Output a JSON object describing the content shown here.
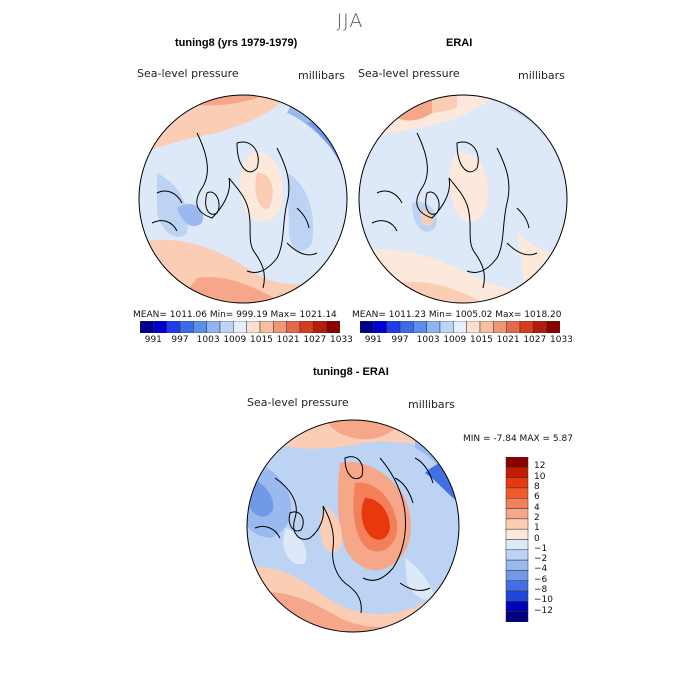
{
  "figure": {
    "season": "JJA"
  },
  "panels": {
    "model": {
      "title": "tuning8 (yrs 1979-1979)",
      "variable": "Sea-level pressure",
      "units": "millibars",
      "stats": "MEAN=  1011.06   Min=  999.19   Max=  1021.14"
    },
    "obs": {
      "title": "ERAI",
      "variable": "Sea-level pressure",
      "units": "millibars",
      "stats": "MEAN=  1011.23   Min=  1005.02   Max=  1018.20"
    },
    "diff": {
      "title": "tuning8 - ERAI",
      "variable": "Sea-level pressure",
      "units": "millibars",
      "stats": "MIN =   -7.84  MAX =    5.87"
    }
  },
  "colorbars": {
    "field": {
      "labels": [
        "991",
        "997",
        "1003",
        "1009",
        "1015",
        "1021",
        "1027",
        "1033"
      ],
      "colors": [
        "#00008b",
        "#0000d0",
        "#1e3ce8",
        "#3d6ae8",
        "#5b8fe9",
        "#8fb4ef",
        "#bcd4f5",
        "#e6f0fb",
        "#fbe0cf",
        "#f6bfa0",
        "#ee9775",
        "#e4684a",
        "#d63c1e",
        "#b41d0c",
        "#8b0000"
      ]
    },
    "diff": {
      "labels": [
        "12",
        "10",
        "8",
        "6",
        "4",
        "2",
        "1",
        "0",
        "−1",
        "−2",
        "−4",
        "−6",
        "−8",
        "−10",
        "−12"
      ],
      "colors": [
        "#8b0000",
        "#c31c00",
        "#e8380e",
        "#f25a2e",
        "#f3805a",
        "#f6a789",
        "#fbcdb4",
        "#fde9dc",
        "#dde9f8",
        "#bdd3f4",
        "#9ab9ef",
        "#7099e8",
        "#4270e4",
        "#1c47dc",
        "#0000b8",
        "#00007d"
      ]
    }
  }
}
